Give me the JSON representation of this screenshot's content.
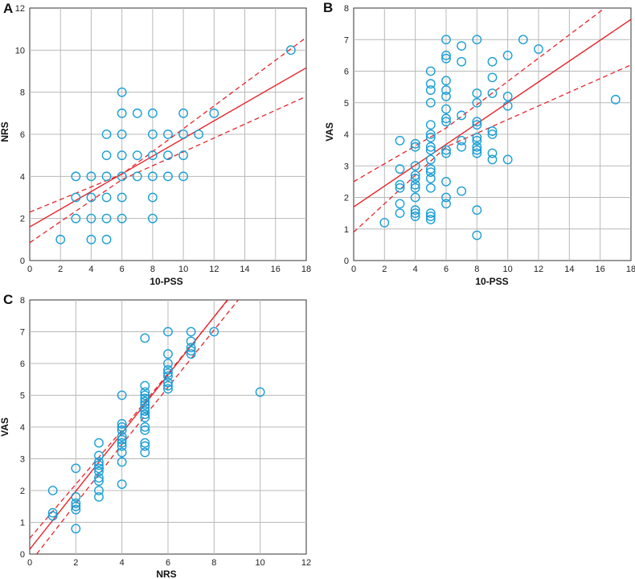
{
  "colors": {
    "marker": "#1a9fd6",
    "fit": "#e8242a",
    "grid": "#b8b8b8",
    "axis": "#333333"
  },
  "chart_data": [
    {
      "panel": "A",
      "type": "scatter",
      "xlabel": "10-PSS",
      "ylabel": "NRS",
      "xlim": [
        0,
        18
      ],
      "ylim": [
        0,
        12
      ],
      "xticks": [
        0,
        2,
        4,
        6,
        8,
        10,
        12,
        14,
        16,
        18
      ],
      "yticks": [
        0,
        2,
        4,
        6,
        8,
        10,
        12
      ],
      "grid": true,
      "points": [
        [
          2,
          1
        ],
        [
          3,
          2
        ],
        [
          3,
          3
        ],
        [
          3,
          4
        ],
        [
          4,
          1
        ],
        [
          4,
          2
        ],
        [
          4,
          3
        ],
        [
          4,
          4
        ],
        [
          5,
          1
        ],
        [
          5,
          2
        ],
        [
          5,
          3
        ],
        [
          5,
          4
        ],
        [
          5,
          5
        ],
        [
          5,
          6
        ],
        [
          6,
          2
        ],
        [
          6,
          3
        ],
        [
          6,
          4
        ],
        [
          6,
          5
        ],
        [
          6,
          6
        ],
        [
          6,
          7
        ],
        [
          6,
          8
        ],
        [
          7,
          4
        ],
        [
          7,
          5
        ],
        [
          7,
          7
        ],
        [
          8,
          2
        ],
        [
          8,
          3
        ],
        [
          8,
          4
        ],
        [
          8,
          5
        ],
        [
          8,
          6
        ],
        [
          8,
          7
        ],
        [
          9,
          4
        ],
        [
          9,
          5
        ],
        [
          9,
          6
        ],
        [
          10,
          4
        ],
        [
          10,
          5
        ],
        [
          10,
          6
        ],
        [
          10,
          7
        ],
        [
          11,
          6
        ],
        [
          12,
          7
        ],
        [
          17,
          10
        ]
      ],
      "fit": {
        "intercept": 1.6,
        "slope": 0.42
      },
      "ci_upper": [
        [
          0,
          2.3
        ],
        [
          6,
          4.1
        ],
        [
          18,
          10.6
        ]
      ],
      "ci_lower": [
        [
          0,
          0.85
        ],
        [
          6,
          3.85
        ],
        [
          18,
          7.8
        ]
      ]
    },
    {
      "panel": "B",
      "type": "scatter",
      "xlabel": "10-PSS",
      "ylabel": "VAS",
      "xlim": [
        0,
        18
      ],
      "ylim": [
        0,
        8
      ],
      "xticks": [
        0,
        2,
        4,
        6,
        8,
        10,
        12,
        14,
        16,
        18
      ],
      "yticks": [
        0,
        1,
        2,
        3,
        4,
        5,
        6,
        7,
        8
      ],
      "grid": true,
      "points": [
        [
          2,
          1.2
        ],
        [
          3,
          1.5
        ],
        [
          3,
          1.8
        ],
        [
          3,
          2.3
        ],
        [
          3,
          2.4
        ],
        [
          3,
          2.9
        ],
        [
          3,
          3.8
        ],
        [
          4,
          1.4
        ],
        [
          4,
          1.5
        ],
        [
          4,
          1.6
        ],
        [
          4,
          2.0
        ],
        [
          4,
          2.3
        ],
        [
          4,
          2.4
        ],
        [
          4,
          2.6
        ],
        [
          4,
          2.7
        ],
        [
          4,
          3.0
        ],
        [
          4,
          3.6
        ],
        [
          4,
          3.7
        ],
        [
          5,
          1.3
        ],
        [
          5,
          1.4
        ],
        [
          5,
          1.5
        ],
        [
          5,
          2.3
        ],
        [
          5,
          2.6
        ],
        [
          5,
          2.8
        ],
        [
          5,
          2.9
        ],
        [
          5,
          3.2
        ],
        [
          5,
          3.5
        ],
        [
          5,
          3.6
        ],
        [
          5,
          3.9
        ],
        [
          5,
          4.0
        ],
        [
          5,
          4.3
        ],
        [
          5,
          5.0
        ],
        [
          5,
          5.4
        ],
        [
          5,
          5.6
        ],
        [
          5,
          6.0
        ],
        [
          6,
          1.8
        ],
        [
          6,
          2.0
        ],
        [
          6,
          2.5
        ],
        [
          6,
          3.4
        ],
        [
          6,
          3.5
        ],
        [
          6,
          4.4
        ],
        [
          6,
          4.5
        ],
        [
          6,
          4.8
        ],
        [
          6,
          5.2
        ],
        [
          6,
          5.4
        ],
        [
          6,
          5.7
        ],
        [
          6,
          6.4
        ],
        [
          6,
          6.5
        ],
        [
          6,
          7.0
        ],
        [
          7,
          2.2
        ],
        [
          7,
          3.6
        ],
        [
          7,
          3.8
        ],
        [
          7,
          4.6
        ],
        [
          7,
          6.3
        ],
        [
          7,
          6.8
        ],
        [
          8,
          0.8
        ],
        [
          8,
          1.6
        ],
        [
          8,
          3.4
        ],
        [
          8,
          3.5
        ],
        [
          8,
          3.6
        ],
        [
          8,
          3.8
        ],
        [
          8,
          3.9
        ],
        [
          8,
          4.3
        ],
        [
          8,
          4.4
        ],
        [
          8,
          5.0
        ],
        [
          8,
          5.3
        ],
        [
          8,
          7.0
        ],
        [
          9,
          3.2
        ],
        [
          9,
          3.4
        ],
        [
          9,
          4.0
        ],
        [
          9,
          4.1
        ],
        [
          9,
          5.3
        ],
        [
          9,
          5.8
        ],
        [
          9,
          6.3
        ],
        [
          10,
          3.2
        ],
        [
          10,
          4.9
        ],
        [
          10,
          5.2
        ],
        [
          10,
          6.5
        ],
        [
          11,
          7.0
        ],
        [
          12,
          6.7
        ],
        [
          17,
          5.1
        ]
      ],
      "fit": {
        "intercept": 1.7,
        "slope": 0.33
      },
      "ci_upper": [
        [
          0,
          2.5
        ],
        [
          6,
          4.2
        ],
        [
          16.3,
          8.0
        ]
      ],
      "ci_lower": [
        [
          0,
          0.9
        ],
        [
          6,
          3.6
        ],
        [
          18,
          6.2
        ]
      ]
    },
    {
      "panel": "C",
      "type": "scatter",
      "xlabel": "NRS",
      "ylabel": "VAS",
      "xlim": [
        0,
        12
      ],
      "ylim": [
        0,
        8
      ],
      "xticks": [
        0,
        2,
        4,
        6,
        8,
        10,
        12
      ],
      "yticks": [
        0,
        1,
        2,
        3,
        4,
        5,
        6,
        7,
        8
      ],
      "grid": true,
      "points": [
        [
          1,
          1.2
        ],
        [
          1,
          1.3
        ],
        [
          1,
          2.0
        ],
        [
          2,
          0.8
        ],
        [
          2,
          1.4
        ],
        [
          2,
          1.5
        ],
        [
          2,
          1.6
        ],
        [
          2,
          1.8
        ],
        [
          2,
          2.7
        ],
        [
          3,
          1.8
        ],
        [
          3,
          2.0
        ],
        [
          3,
          2.3
        ],
        [
          3,
          2.4
        ],
        [
          3,
          2.6
        ],
        [
          3,
          2.7
        ],
        [
          3,
          2.8
        ],
        [
          3,
          2.9
        ],
        [
          3,
          3.1
        ],
        [
          3,
          3.5
        ],
        [
          4,
          2.2
        ],
        [
          4,
          2.9
        ],
        [
          4,
          3.2
        ],
        [
          4,
          3.4
        ],
        [
          4,
          3.5
        ],
        [
          4,
          3.6
        ],
        [
          4,
          3.7
        ],
        [
          4,
          3.9
        ],
        [
          4,
          4.0
        ],
        [
          4,
          4.1
        ],
        [
          4,
          5.0
        ],
        [
          5,
          3.2
        ],
        [
          5,
          3.4
        ],
        [
          5,
          3.5
        ],
        [
          5,
          3.9
        ],
        [
          5,
          4.0
        ],
        [
          5,
          4.3
        ],
        [
          5,
          4.4
        ],
        [
          5,
          4.5
        ],
        [
          5,
          4.6
        ],
        [
          5,
          4.7
        ],
        [
          5,
          4.8
        ],
        [
          5,
          4.9
        ],
        [
          5,
          5.0
        ],
        [
          5,
          5.1
        ],
        [
          5,
          5.3
        ],
        [
          5,
          6.8
        ],
        [
          6,
          5.2
        ],
        [
          6,
          5.3
        ],
        [
          6,
          5.4
        ],
        [
          6,
          5.6
        ],
        [
          6,
          5.7
        ],
        [
          6,
          5.8
        ],
        [
          6,
          6.0
        ],
        [
          6,
          6.3
        ],
        [
          6,
          7.0
        ],
        [
          7,
          6.3
        ],
        [
          7,
          6.4
        ],
        [
          7,
          6.5
        ],
        [
          7,
          6.7
        ],
        [
          7,
          7.0
        ],
        [
          8,
          7.0
        ],
        [
          10,
          5.1
        ]
      ],
      "fit": {
        "intercept": 0.15,
        "slope": 0.915
      },
      "ci_upper": [
        [
          0,
          0.5
        ],
        [
          4,
          3.9
        ],
        [
          8.6,
          8.0
        ]
      ],
      "ci_lower": [
        [
          0.3,
          0.0
        ],
        [
          4,
          3.45
        ],
        [
          9.05,
          8.0
        ]
      ]
    }
  ]
}
